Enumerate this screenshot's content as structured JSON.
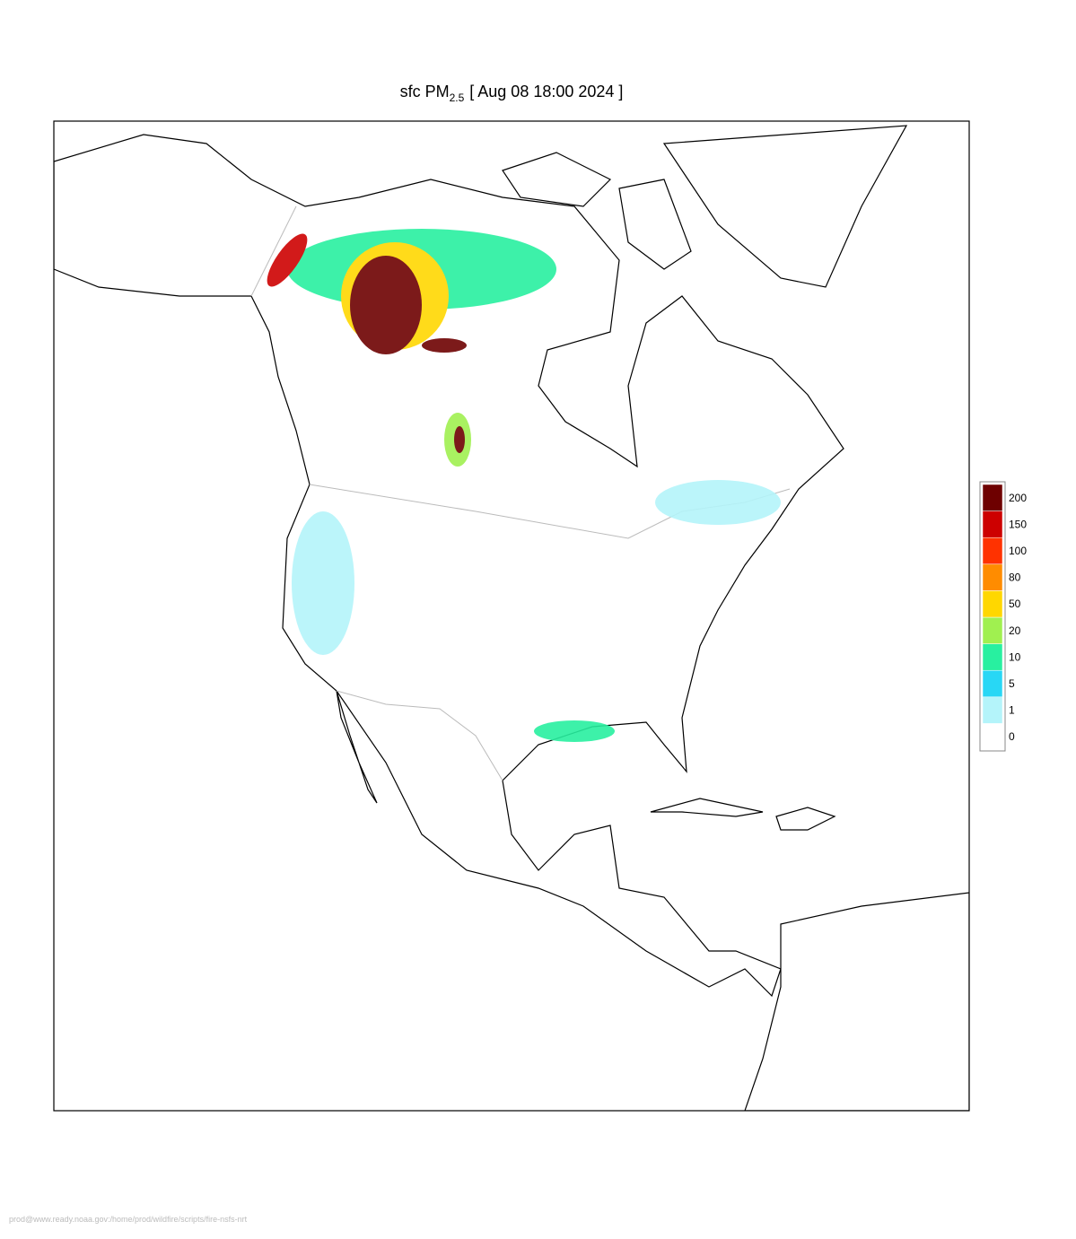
{
  "title": {
    "main": "sfc PM",
    "subscript": "2.5",
    "time": "[ Aug 08 18:00 2024 ]"
  },
  "colorbar": {
    "levels": [
      0,
      1,
      5,
      10,
      20,
      50,
      80,
      100,
      150,
      200
    ],
    "colors": [
      "#ffffff",
      "#b4f4fa",
      "#28d7f5",
      "#28f0a0",
      "#a0f050",
      "#ffd700",
      "#ff8c00",
      "#ff3200",
      "#cd0000",
      "#6e0000"
    ]
  },
  "footer": "prod@www.ready.noaa.gov:/home/prod/wildfire/scripts/fire-nsfs-nrt"
}
